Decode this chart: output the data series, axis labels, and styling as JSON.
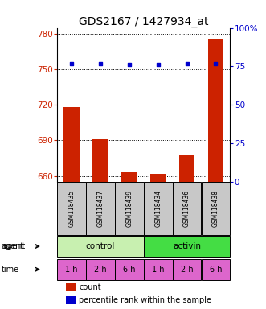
{
  "title": "GDS2167 / 1427934_at",
  "samples": [
    "GSM118435",
    "GSM118437",
    "GSM118439",
    "GSM118434",
    "GSM118436",
    "GSM118438"
  ],
  "counts": [
    718,
    691,
    663,
    662,
    678,
    775
  ],
  "percentile_ranks": [
    77,
    77,
    76,
    76,
    77,
    77
  ],
  "ylim_left": [
    655,
    785
  ],
  "ylim_right": [
    0,
    100
  ],
  "yticks_left": [
    660,
    690,
    720,
    750,
    780
  ],
  "yticks_right": [
    0,
    25,
    50,
    75,
    100
  ],
  "ytick_labels_right": [
    "0",
    "25",
    "50",
    "75",
    "100%"
  ],
  "bar_color": "#cc2200",
  "dot_color": "#0000cc",
  "agent_colors": [
    "#c8f0b0",
    "#44dd44"
  ],
  "time_color": "#dd66cc",
  "sample_bg_color": "#c8c8c8",
  "time_labels": [
    "1 h",
    "2 h",
    "6 h",
    "1 h",
    "2 h",
    "6 h"
  ],
  "legend_count_color": "#cc2200",
  "legend_pct_color": "#0000cc",
  "title_fontsize": 10,
  "tick_fontsize": 7.5,
  "label_fontsize": 7
}
